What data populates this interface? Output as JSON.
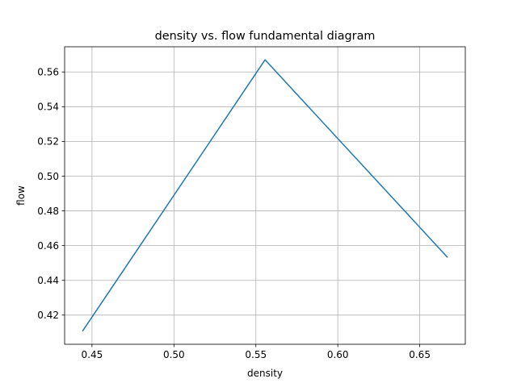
{
  "chart_data": {
    "type": "line",
    "title": "density vs. flow fundamental diagram",
    "xlabel": "density",
    "ylabel": "flow",
    "xlim": [
      0.4333,
      0.6778
    ],
    "ylim": [
      0.4032,
      0.5745
    ],
    "grid": true,
    "x_ticks": [
      0.45,
      0.5,
      0.55,
      0.6,
      0.65
    ],
    "x_tick_labels": [
      "0.45",
      "0.50",
      "0.55",
      "0.60",
      "0.65"
    ],
    "y_ticks": [
      0.42,
      0.44,
      0.46,
      0.48,
      0.5,
      0.52,
      0.54,
      0.56
    ],
    "y_tick_labels": [
      "0.42",
      "0.44",
      "0.46",
      "0.48",
      "0.50",
      "0.52",
      "0.54",
      "0.56"
    ],
    "series": [
      {
        "color": "#1f77b4",
        "x": [
          0.4444,
          0.5556,
          0.6667
        ],
        "y": [
          0.411,
          0.567,
          0.4535
        ]
      }
    ]
  }
}
